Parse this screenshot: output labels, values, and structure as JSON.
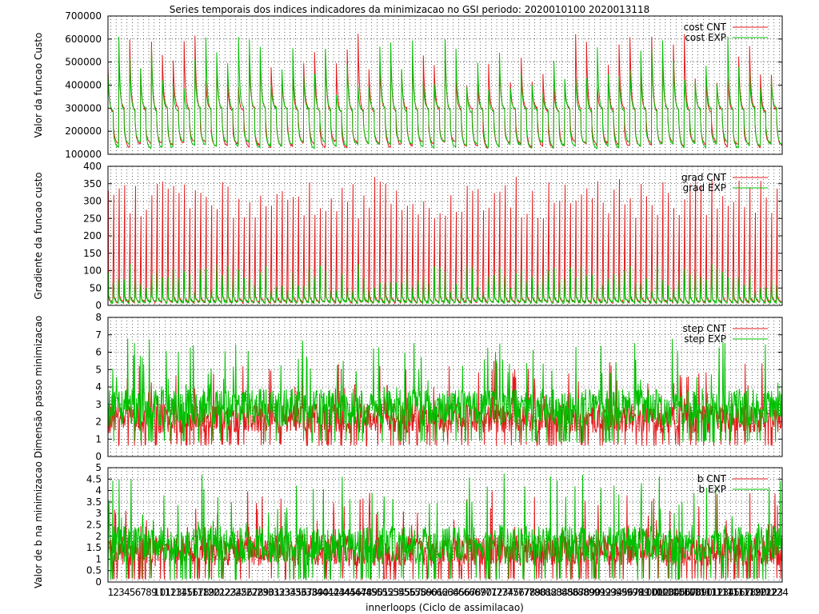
{
  "chart_data": {
    "type": "line",
    "title": "Series temporais dos indices indicadores da minimizacao no GSI periodo: 2020010100 2020013118",
    "xlabel": "innerloops (Ciclo de assimilacao)",
    "x_tick_labels": [
      "1",
      "2",
      "3",
      "4",
      "5",
      "6",
      "7",
      "8",
      "9",
      "10",
      "11",
      "12",
      "13",
      "14",
      "15",
      "16",
      "17",
      "18",
      "19",
      "20",
      "21",
      "22",
      "23",
      "24",
      "25",
      "26",
      "27",
      "28",
      "29",
      "30",
      "31",
      "32",
      "33",
      "34",
      "35",
      "36",
      "37",
      "38",
      "39",
      "40",
      "41",
      "42",
      "43",
      "44",
      "45",
      "46",
      "47",
      "48",
      "49",
      "50",
      "51",
      "52",
      "53",
      "54",
      "55",
      "56",
      "57",
      "58",
      "59",
      "60",
      "61",
      "62",
      "63",
      "64",
      "65",
      "66",
      "67",
      "68",
      "69",
      "70",
      "71",
      "72",
      "73",
      "74",
      "75",
      "76",
      "77",
      "78",
      "79",
      "80",
      "81",
      "82",
      "83",
      "84",
      "85",
      "86",
      "87",
      "88",
      "89",
      "90",
      "91",
      "92",
      "93",
      "94",
      "95",
      "96",
      "97",
      "98",
      "99",
      "100",
      "101",
      "102",
      "103",
      "104",
      "105",
      "106",
      "107",
      "108",
      "109",
      "110",
      "111",
      "112",
      "113",
      "114",
      "115",
      "116",
      "117",
      "118",
      "119",
      "120",
      "121",
      "122",
      "123",
      "124"
    ],
    "xlim": [
      1,
      124
    ],
    "grid": true,
    "legend_position": "top-right",
    "colors": {
      "CNT": "#e41a1c",
      "EXP": "#00c000"
    },
    "panels": [
      {
        "ylabel": "Valor da funcao Custo",
        "ylim": [
          100000,
          700000
        ],
        "yticks": [
          100000,
          200000,
          300000,
          400000,
          500000,
          600000,
          700000
        ],
        "ytick_labels": [
          "100000",
          "200000",
          "300000",
          "400000",
          "500000",
          "600000",
          "700000"
        ],
        "series": [
          {
            "name": "cost CNT",
            "color": "#e41a1c",
            "pattern": "cycle-decay",
            "cycle_peak": [
              250000,
              640000
            ],
            "cycle_floor": [
              125000,
              300000
            ]
          },
          {
            "name": "cost EXP",
            "color": "#00c000",
            "pattern": "cycle-decay",
            "cycle_peak": [
              250000,
              620000
            ],
            "cycle_floor": [
              125000,
              300000
            ]
          }
        ]
      },
      {
        "ylabel": "Gradiente da funcao custo",
        "ylim": [
          0,
          400
        ],
        "yticks": [
          0,
          50,
          100,
          150,
          200,
          250,
          300,
          350,
          400
        ],
        "ytick_labels": [
          "0",
          "50",
          "100",
          "150",
          "200",
          "250",
          "300",
          "350",
          "400"
        ],
        "series": [
          {
            "name": "grad CNT",
            "color": "#e41a1c",
            "pattern": "spikes",
            "peak_range": [
              250,
              370
            ],
            "baseline": [
              3,
              30
            ]
          },
          {
            "name": "grad EXP",
            "color": "#00c000",
            "pattern": "spikes",
            "peak_range": [
              40,
              120
            ],
            "baseline": [
              3,
              25
            ]
          }
        ]
      },
      {
        "ylabel": "Dimensão passo minimizacao",
        "ylim": [
          0,
          8
        ],
        "yticks": [
          0,
          1,
          2,
          3,
          4,
          5,
          6,
          7,
          8
        ],
        "ytick_labels": [
          "0",
          "1",
          "2",
          "3",
          "4",
          "5",
          "6",
          "7",
          "8"
        ],
        "series": [
          {
            "name": "step CNT",
            "color": "#e41a1c",
            "pattern": "noise",
            "range": [
              0.6,
              5.5
            ]
          },
          {
            "name": "step EXP",
            "color": "#00c000",
            "pattern": "noise",
            "range": [
              0.8,
              7.0
            ]
          }
        ]
      },
      {
        "ylabel": "Valor de b na minimizacao",
        "ylim": [
          0,
          5
        ],
        "yticks": [
          0,
          0.5,
          1,
          1.5,
          2,
          2.5,
          3,
          3.5,
          4,
          4.5,
          5
        ],
        "ytick_labels": [
          "0",
          "0.5",
          "1",
          "1.5",
          "2",
          "2.5",
          "3",
          "3.5",
          "4",
          "4.5",
          "5"
        ],
        "series": [
          {
            "name": "b CNT",
            "color": "#e41a1c",
            "pattern": "noise",
            "range": [
              0.1,
              4.0
            ]
          },
          {
            "name": "b EXP",
            "color": "#00c000",
            "pattern": "noise",
            "range": [
              0.1,
              4.8
            ]
          }
        ]
      }
    ]
  }
}
